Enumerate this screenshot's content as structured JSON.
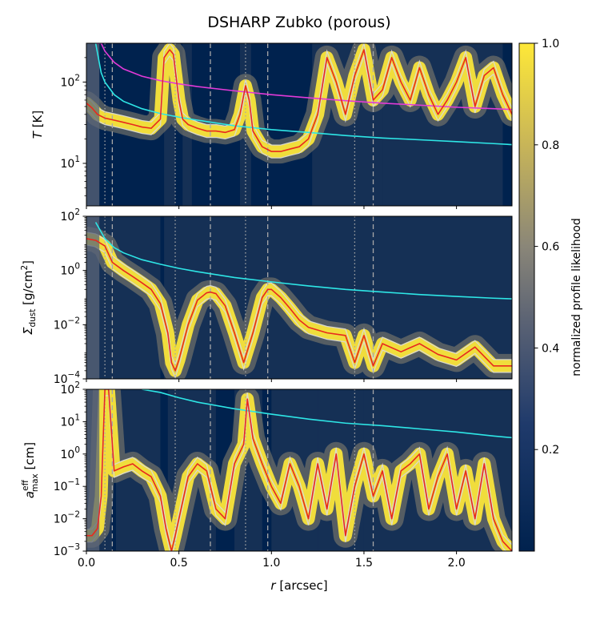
{
  "figure": {
    "title": "DSHARP Zubko (porous)",
    "xlabel_main": "r",
    "xlabel_unit": " [arcsec]",
    "colorbar_label": "normalized profile likelihood"
  },
  "colors": {
    "background_low": "#00224e",
    "background_high": "#fee838",
    "best_fit_line": "#e8281e",
    "contour_line": "#d9d9d9",
    "cyan_line": "#2ee6e6",
    "magenta_line": "#e33ad8",
    "vline_color": "#a8a8a8"
  },
  "chart_data": [
    {
      "type": "heatmap",
      "panel": "temperature",
      "ylabel_main": "T",
      "ylabel_unit": " [K]",
      "yscale": "log",
      "ylim": [
        3,
        300
      ],
      "xlim": [
        0.0,
        2.3
      ],
      "xticks": [
        0.0,
        0.5,
        1.0,
        1.5,
        2.0
      ],
      "xtick_labels": [
        "0.0",
        "0.5",
        "1.0",
        "1.5",
        "2.0"
      ],
      "yticks": [
        10,
        100
      ],
      "ytick_labels": [
        "10^1",
        "10^2"
      ],
      "best_fit_profile": {
        "x": [
          0.0,
          0.03,
          0.06,
          0.1,
          0.15,
          0.2,
          0.25,
          0.3,
          0.35,
          0.4,
          0.42,
          0.45,
          0.47,
          0.5,
          0.52,
          0.55,
          0.6,
          0.65,
          0.7,
          0.75,
          0.8,
          0.83,
          0.86,
          0.88,
          0.9,
          0.95,
          1.0,
          1.05,
          1.1,
          1.15,
          1.2,
          1.25,
          1.3,
          1.35,
          1.4,
          1.45,
          1.5,
          1.55,
          1.6,
          1.65,
          1.7,
          1.75,
          1.8,
          1.85,
          1.9,
          1.95,
          2.0,
          2.05,
          2.1,
          2.15,
          2.2,
          2.25,
          2.3
        ],
        "y": [
          55,
          48,
          40,
          36,
          34,
          32,
          30,
          28,
          27,
          35,
          200,
          250,
          220,
          60,
          35,
          30,
          27,
          25,
          25,
          24,
          26,
          40,
          90,
          60,
          25,
          16,
          14,
          14,
          15,
          16,
          20,
          40,
          200,
          100,
          40,
          120,
          250,
          60,
          80,
          200,
          100,
          60,
          150,
          70,
          40,
          60,
          100,
          200,
          50,
          120,
          150,
          70,
          40
        ]
      },
      "cyan_profile": {
        "x": [
          0.05,
          0.08,
          0.1,
          0.15,
          0.2,
          0.3,
          0.4,
          0.5,
          0.6,
          0.8,
          1.0,
          1.2,
          1.4,
          1.6,
          1.8,
          2.0,
          2.2,
          2.3
        ],
        "y": [
          300,
          130,
          100,
          70,
          58,
          47,
          41,
          37,
          34,
          29,
          26,
          24,
          22,
          20.5,
          19.5,
          18.5,
          17.5,
          17
        ]
      },
      "magenta_profile": {
        "x": [
          0.05,
          0.08,
          0.1,
          0.15,
          0.2,
          0.3,
          0.4,
          0.5,
          0.6,
          0.8,
          1.0,
          1.2,
          1.4,
          1.6,
          1.8,
          2.0,
          2.2,
          2.3
        ],
        "y": [
          300,
          300,
          240,
          175,
          145,
          118,
          104,
          95,
          88,
          78,
          70,
          64,
          59,
          55,
          52,
          49,
          47,
          46
        ]
      },
      "high_likelihood_bands": [
        [
          0.42,
          0.48
        ],
        [
          0.52,
          0.57
        ],
        [
          0.83,
          0.89
        ],
        [
          1.22,
          1.6
        ],
        [
          1.6,
          2.25
        ]
      ]
    },
    {
      "type": "heatmap",
      "panel": "surface_density",
      "ylabel_main": "Σ",
      "ylabel_sub": "dust",
      "ylabel_unit": " [g/cm",
      "ylabel_unit_sup": "2",
      "ylabel_unit_end": "]",
      "yscale": "log",
      "ylim": [
        0.0001,
        100
      ],
      "yticks": [
        0.0001,
        0.01,
        1,
        100
      ],
      "ytick_labels": [
        "10^-4",
        "10^-2",
        "10^0",
        "10^2"
      ],
      "best_fit_profile": {
        "x": [
          0.0,
          0.05,
          0.1,
          0.14,
          0.2,
          0.25,
          0.3,
          0.35,
          0.4,
          0.44,
          0.46,
          0.48,
          0.5,
          0.55,
          0.6,
          0.65,
          0.67,
          0.7,
          0.75,
          0.8,
          0.85,
          0.9,
          0.95,
          0.98,
          1.0,
          1.05,
          1.1,
          1.15,
          1.2,
          1.3,
          1.4,
          1.45,
          1.5,
          1.55,
          1.6,
          1.7,
          1.8,
          1.9,
          2.0,
          2.1,
          2.2,
          2.3
        ],
        "y": [
          15,
          13,
          8,
          2,
          1.0,
          0.6,
          0.35,
          0.2,
          0.06,
          0.005,
          0.0004,
          0.0002,
          0.0005,
          0.01,
          0.08,
          0.15,
          0.16,
          0.14,
          0.05,
          0.005,
          0.0004,
          0.005,
          0.1,
          0.2,
          0.2,
          0.1,
          0.04,
          0.015,
          0.008,
          0.005,
          0.004,
          0.0004,
          0.004,
          0.0003,
          0.002,
          0.001,
          0.002,
          0.0008,
          0.0005,
          0.0015,
          0.0003,
          0.0003
        ]
      },
      "cyan_profile": {
        "x": [
          0.05,
          0.1,
          0.15,
          0.2,
          0.3,
          0.4,
          0.5,
          0.6,
          0.8,
          1.0,
          1.2,
          1.4,
          1.6,
          1.8,
          2.0,
          2.2,
          2.3
        ],
        "y": [
          60,
          15,
          7,
          4.5,
          2.5,
          1.7,
          1.2,
          0.9,
          0.55,
          0.38,
          0.27,
          0.2,
          0.16,
          0.13,
          0.11,
          0.095,
          0.09
        ]
      },
      "high_likelihood_bands": [
        [
          0.0,
          0.4
        ],
        [
          0.42,
          1.1
        ],
        [
          1.1,
          2.3
        ]
      ]
    },
    {
      "type": "heatmap",
      "panel": "max_grain_size",
      "ylabel_main": "a",
      "ylabel_sup": "eff",
      "ylabel_sub": "max",
      "ylabel_unit": " [cm]",
      "yscale": "log",
      "ylim": [
        0.001,
        100
      ],
      "yticks": [
        0.001,
        0.01,
        0.1,
        1,
        10,
        100
      ],
      "ytick_labels": [
        "10^-3",
        "10^-2",
        "10^-1",
        "10^0",
        "10^1",
        "10^2"
      ],
      "best_fit_profile": {
        "x": [
          0.0,
          0.03,
          0.06,
          0.08,
          0.1,
          0.12,
          0.15,
          0.2,
          0.25,
          0.3,
          0.35,
          0.4,
          0.43,
          0.46,
          0.48,
          0.5,
          0.55,
          0.6,
          0.65,
          0.7,
          0.75,
          0.8,
          0.85,
          0.87,
          0.9,
          0.95,
          1.0,
          1.05,
          1.1,
          1.15,
          1.2,
          1.25,
          1.3,
          1.35,
          1.4,
          1.45,
          1.5,
          1.55,
          1.6,
          1.65,
          1.7,
          1.75,
          1.8,
          1.85,
          1.9,
          1.95,
          2.0,
          2.05,
          2.1,
          2.15,
          2.2,
          2.25,
          2.3
        ],
        "y": [
          0.003,
          0.003,
          0.005,
          0.05,
          100,
          100,
          0.3,
          0.4,
          0.5,
          0.3,
          0.2,
          0.05,
          0.005,
          0.001,
          0.003,
          0.01,
          0.2,
          0.5,
          0.3,
          0.02,
          0.01,
          0.5,
          2,
          50,
          3,
          0.5,
          0.1,
          0.03,
          0.5,
          0.1,
          0.01,
          0.5,
          0.02,
          1,
          0.003,
          0.1,
          1,
          0.05,
          0.3,
          0.01,
          0.3,
          0.5,
          1,
          0.02,
          0.2,
          1,
          0.02,
          0.3,
          0.01,
          0.5,
          0.01,
          0.002,
          0.001
        ]
      },
      "cyan_profile": {
        "x": [
          0.3,
          0.4,
          0.5,
          0.6,
          0.8,
          1.0,
          1.2,
          1.4,
          1.6,
          1.8,
          2.0,
          2.2,
          2.3
        ],
        "y": [
          100,
          80,
          55,
          40,
          25,
          17,
          12,
          9,
          7.5,
          6,
          4.8,
          3.6,
          3.2
        ]
      },
      "high_likelihood_bands": [
        [
          0.0,
          0.08
        ],
        [
          0.08,
          0.14
        ],
        [
          0.16,
          0.4
        ],
        [
          0.44,
          0.5
        ],
        [
          0.5,
          0.7
        ],
        [
          0.8,
          0.95
        ],
        [
          1.0,
          1.25
        ],
        [
          1.25,
          1.5
        ],
        [
          1.5,
          2.3
        ]
      ]
    }
  ],
  "vertical_markers": {
    "dotted": [
      0.1,
      0.48,
      0.86,
      1.45
    ],
    "dashed": [
      0.14,
      0.67,
      0.98,
      1.55
    ]
  },
  "colorbar": {
    "range": [
      0.0,
      1.0
    ],
    "ticks": [
      0.2,
      0.4,
      0.6,
      0.8,
      1.0
    ],
    "tick_labels": [
      "0.2",
      "0.4",
      "0.6",
      "0.8",
      "1.0"
    ]
  }
}
